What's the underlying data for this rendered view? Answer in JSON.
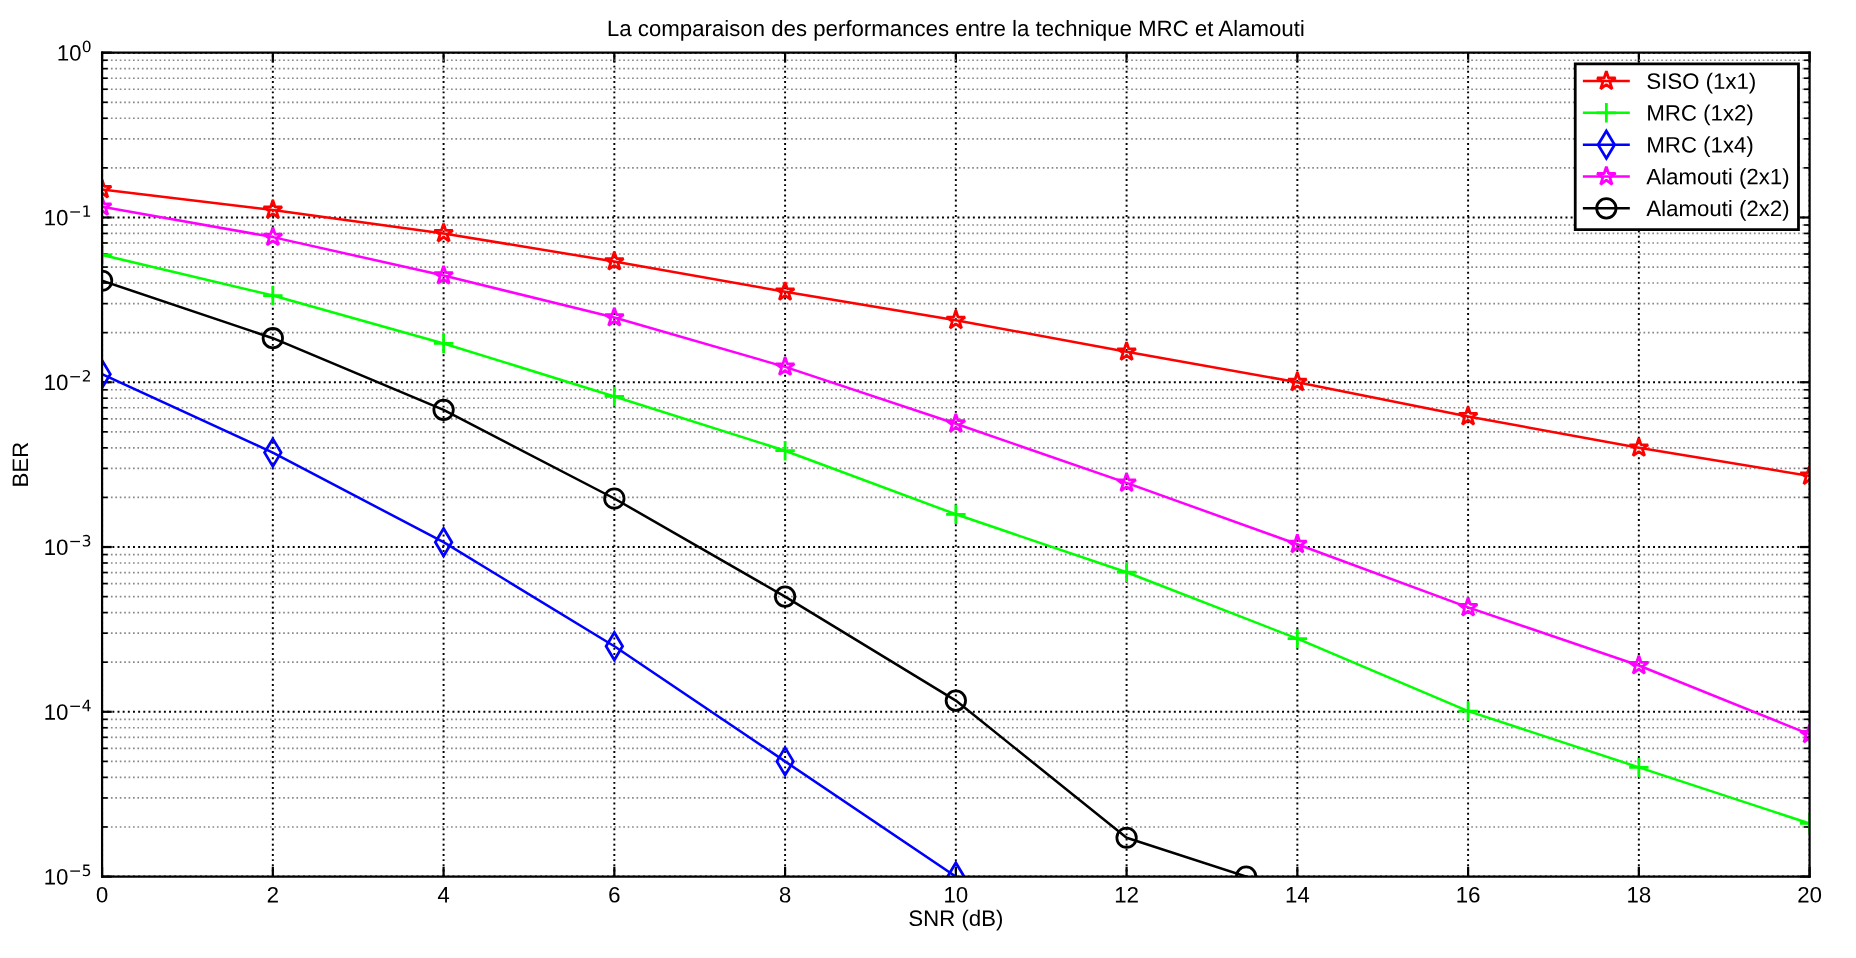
{
  "chart_data": {
    "type": "line",
    "title": "La comparaison des performances entre la technique MRC et Alamouti",
    "xlabel": "SNR (dB)",
    "ylabel": "BER",
    "x": [
      0,
      2,
      4,
      6,
      8,
      10,
      12,
      14,
      16,
      18,
      20
    ],
    "series": [
      {
        "name": "SISO (1x1)",
        "color": "#ff0000",
        "marker": "star",
        "values": [
          0.148,
          0.111,
          0.08,
          0.054,
          0.0354,
          0.0238,
          0.0153,
          0.01,
          0.0062,
          0.004,
          0.0027
        ]
      },
      {
        "name": "MRC (1x2)",
        "color": "#00ff00",
        "marker": "cross",
        "values": [
          0.0593,
          0.0336,
          0.0172,
          0.0082,
          0.00384,
          0.00158,
          0.000703,
          0.000278,
          0.000101,
          4.6e-05,
          2.1e-05
        ]
      },
      {
        "name": "MRC (1x4)",
        "color": "#0000ff",
        "marker": "diamond",
        "values": [
          0.0112,
          0.00374,
          0.00107,
          0.00025,
          5e-05,
          1e-05,
          null,
          null,
          null,
          null,
          null
        ]
      },
      {
        "name": "Alamouti (2x1)",
        "color": "#ff00ff",
        "marker": "star",
        "values": [
          0.116,
          0.076,
          0.0444,
          0.0247,
          0.0124,
          0.0056,
          0.00245,
          0.00104,
          0.00043,
          0.000191,
          7.3e-05
        ]
      },
      {
        "name": "Alamouti (2x2)",
        "color": "#000000",
        "marker": "circle",
        "x": [
          0,
          2,
          4,
          6,
          8,
          10,
          12,
          13.4
        ],
        "values": [
          0.0413,
          0.0185,
          0.0068,
          0.00197,
          0.0005,
          0.000117,
          1.72e-05,
          1e-05
        ]
      }
    ],
    "log": "y",
    "xlim": [
      0,
      20
    ],
    "ylim": [
      1e-05,
      1
    ],
    "xticks": [
      0,
      2,
      4,
      6,
      8,
      10,
      12,
      14,
      16,
      18,
      20
    ],
    "yticks": [
      {
        "value": 1e-05,
        "label": "10$^{−5}$"
      },
      {
        "value": 0.0001,
        "label": "10$^{−4}$"
      },
      {
        "value": 0.001,
        "label": "10$^{−3}$"
      },
      {
        "value": 0.01,
        "label": "10$^{−2}$"
      },
      {
        "value": 0.1,
        "label": "10$^{−1}$"
      },
      {
        "value": 1,
        "label": "10$^{0}$"
      }
    ],
    "grid": true,
    "legend": "top right",
    "line_style": "solid"
  }
}
